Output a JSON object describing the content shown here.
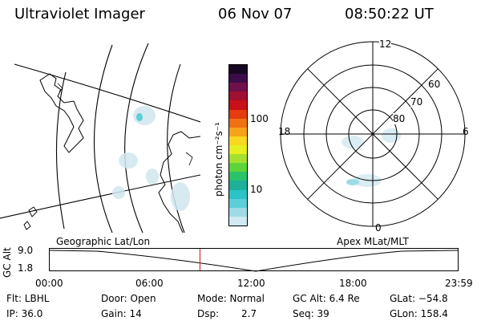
{
  "header": {
    "title": "Ultraviolet Imager",
    "date": "06 Nov 07",
    "time": "08:50:22 UT"
  },
  "colorbar": {
    "unit_label": "photon cm⁻²s⁻¹",
    "tick_100": "100",
    "tick_10": "10",
    "colors": [
      "#cfeaf0",
      "#9edbe6",
      "#5ccfd8",
      "#2bc3c8",
      "#1eb09a",
      "#2ac36a",
      "#5fd33a",
      "#a6e02e",
      "#e6ef20",
      "#f8d820",
      "#f6a21a",
      "#f07014",
      "#e23c10",
      "#c81018",
      "#a01030",
      "#70104a",
      "#3c0c4a",
      "#160822"
    ]
  },
  "polar": {
    "labels": {
      "top": "12",
      "bottom": "0",
      "left": "18",
      "right": "6"
    },
    "lat_labels": [
      "60",
      "70",
      "80"
    ]
  },
  "timeline": {
    "left_title": "Geographic Lat/Lon",
    "right_title": "Apex  MLat/MLT",
    "axis_label": "GC Alt",
    "y_max": "9.0",
    "y_min": "1.8",
    "x_ticks": [
      "00:00",
      "06:00",
      "12:00",
      "18:00",
      "23:59"
    ],
    "current_time_fraction": 0.3683,
    "marker_color": "#d03030"
  },
  "info": {
    "flt": "Flt: LBHL",
    "ip": "IP: 36.0",
    "door": "Door: Open",
    "gain": "Gain: 14",
    "mode": "Mode: Normal",
    "dsp_label": "Dsp:",
    "dsp_value": "2.7",
    "gc_alt": "GC Alt: 6.4 Re",
    "seq": "Seq: 39",
    "glat": "GLat: −54.8",
    "glon": "GLon: 158.4"
  }
}
